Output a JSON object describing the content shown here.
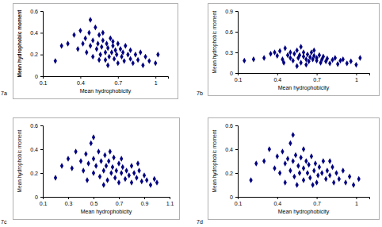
{
  "chart_data": [
    {
      "type": "scatter",
      "title": "7a",
      "x_label": "Mean hydrophobicity",
      "y_label": "Mean hydrophobic moment",
      "color": "#000080",
      "marker": "diamond",
      "grid": false,
      "xlim": [
        0.1,
        1.1
      ],
      "xticks": [
        0.1,
        0.4,
        0.7,
        1
      ],
      "ylim": [
        0,
        0.6
      ],
      "yticks": [
        0,
        0.2,
        0.4,
        0.6
      ],
      "x": [
        0.2,
        0.25,
        0.3,
        0.35,
        0.38,
        0.4,
        0.42,
        0.44,
        0.45,
        0.47,
        0.48,
        0.5,
        0.5,
        0.52,
        0.53,
        0.54,
        0.55,
        0.56,
        0.57,
        0.58,
        0.6,
        0.6,
        0.61,
        0.62,
        0.63,
        0.64,
        0.65,
        0.66,
        0.67,
        0.68,
        0.69,
        0.7,
        0.7,
        0.72,
        0.73,
        0.74,
        0.75,
        0.76,
        0.78,
        0.8,
        0.8,
        0.82,
        0.84,
        0.86,
        0.88,
        0.9,
        0.92,
        0.95,
        1.0,
        1.02,
        0.48,
        0.62,
        0.55,
        0.66,
        0.58
      ],
      "values": [
        0.14,
        0.28,
        0.3,
        0.38,
        0.25,
        0.42,
        0.3,
        0.35,
        0.22,
        0.4,
        0.28,
        0.33,
        0.18,
        0.45,
        0.25,
        0.3,
        0.38,
        0.2,
        0.27,
        0.33,
        0.22,
        0.15,
        0.3,
        0.26,
        0.18,
        0.35,
        0.22,
        0.28,
        0.16,
        0.24,
        0.2,
        0.3,
        0.12,
        0.25,
        0.18,
        0.22,
        0.14,
        0.28,
        0.2,
        0.16,
        0.24,
        0.12,
        0.2,
        0.15,
        0.22,
        0.1,
        0.18,
        0.14,
        0.12,
        0.2,
        0.52,
        0.1,
        0.15,
        0.32,
        0.4
      ]
    },
    {
      "type": "scatter",
      "title": "7b",
      "x_label": "Mean hydrophobicity",
      "y_label": "Mean hydrophobic moment",
      "color": "#000080",
      "marker": "diamond",
      "grid": false,
      "xlim": [
        0.1,
        1.1
      ],
      "xticks": [
        0.1,
        0.4,
        0.7,
        1
      ],
      "ylim": [
        0,
        0.9
      ],
      "yticks": [
        0,
        0.3,
        0.6,
        0.9
      ],
      "x": [
        0.15,
        0.22,
        0.3,
        0.35,
        0.38,
        0.4,
        0.42,
        0.44,
        0.46,
        0.48,
        0.5,
        0.5,
        0.52,
        0.53,
        0.55,
        0.56,
        0.57,
        0.58,
        0.6,
        0.6,
        0.62,
        0.63,
        0.64,
        0.65,
        0.66,
        0.67,
        0.68,
        0.7,
        0.7,
        0.72,
        0.73,
        0.74,
        0.75,
        0.77,
        0.78,
        0.8,
        0.82,
        0.84,
        0.86,
        0.88,
        0.9,
        0.93,
        0.96,
        1.0,
        1.03,
        0.58,
        0.62,
        0.45,
        0.68,
        0.55
      ],
      "values": [
        0.18,
        0.2,
        0.22,
        0.28,
        0.3,
        0.25,
        0.32,
        0.2,
        0.36,
        0.26,
        0.22,
        0.3,
        0.18,
        0.28,
        0.33,
        0.22,
        0.26,
        0.15,
        0.24,
        0.3,
        0.2,
        0.27,
        0.17,
        0.23,
        0.3,
        0.2,
        0.25,
        0.18,
        0.22,
        0.26,
        0.15,
        0.2,
        0.24,
        0.17,
        0.21,
        0.14,
        0.19,
        0.22,
        0.13,
        0.18,
        0.2,
        0.14,
        0.17,
        0.12,
        0.22,
        0.38,
        0.12,
        0.15,
        0.33,
        0.1
      ]
    },
    {
      "type": "scatter",
      "title": "7c",
      "x_label": "Mean hydrophobicity",
      "y_label": "Mean hydrophobic moment",
      "color": "#000080",
      "marker": "diamond",
      "grid": false,
      "xlim": [
        0.1,
        1.1
      ],
      "xticks": [
        0.1,
        0.3,
        0.5,
        0.7,
        0.9,
        1.1
      ],
      "ylim": [
        0,
        0.6
      ],
      "yticks": [
        0,
        0.2,
        0.4,
        0.6
      ],
      "x": [
        0.2,
        0.25,
        0.3,
        0.33,
        0.36,
        0.4,
        0.42,
        0.44,
        0.46,
        0.48,
        0.5,
        0.5,
        0.52,
        0.54,
        0.55,
        0.56,
        0.58,
        0.59,
        0.6,
        0.61,
        0.62,
        0.64,
        0.65,
        0.66,
        0.67,
        0.68,
        0.7,
        0.7,
        0.72,
        0.73,
        0.75,
        0.76,
        0.78,
        0.8,
        0.8,
        0.82,
        0.84,
        0.86,
        0.88,
        0.9,
        0.92,
        0.95,
        0.98,
        1.0,
        0.5,
        0.45,
        0.63,
        0.58,
        0.72,
        0.85
      ],
      "values": [
        0.16,
        0.26,
        0.32,
        0.24,
        0.38,
        0.3,
        0.22,
        0.36,
        0.28,
        0.45,
        0.32,
        0.2,
        0.26,
        0.38,
        0.17,
        0.3,
        0.22,
        0.35,
        0.26,
        0.14,
        0.3,
        0.2,
        0.25,
        0.33,
        0.16,
        0.22,
        0.28,
        0.12,
        0.2,
        0.25,
        0.15,
        0.22,
        0.18,
        0.26,
        0.12,
        0.2,
        0.16,
        0.22,
        0.13,
        0.18,
        0.14,
        0.1,
        0.15,
        0.12,
        0.5,
        0.14,
        0.38,
        0.1,
        0.32,
        0.28
      ]
    },
    {
      "type": "scatter",
      "title": "7d",
      "x_label": "Mean hydrophobicity",
      "y_label": "Mean hydrophobic moment",
      "color": "#000080",
      "marker": "diamond",
      "grid": false,
      "xlim": [
        0.1,
        1.1
      ],
      "xticks": [
        0.1,
        0.4,
        0.7,
        1
      ],
      "ylim": [
        0,
        0.6
      ],
      "yticks": [
        0,
        0.2,
        0.4,
        0.6
      ],
      "x": [
        0.2,
        0.24,
        0.3,
        0.34,
        0.38,
        0.4,
        0.42,
        0.44,
        0.46,
        0.48,
        0.5,
        0.5,
        0.52,
        0.53,
        0.54,
        0.56,
        0.57,
        0.58,
        0.6,
        0.6,
        0.62,
        0.63,
        0.64,
        0.65,
        0.66,
        0.68,
        0.69,
        0.7,
        0.71,
        0.72,
        0.74,
        0.75,
        0.77,
        0.78,
        0.8,
        0.82,
        0.83,
        0.85,
        0.87,
        0.9,
        0.92,
        0.95,
        0.98,
        1.02,
        0.52,
        0.46,
        0.6,
        0.67,
        0.8,
        0.55
      ],
      "values": [
        0.14,
        0.28,
        0.3,
        0.4,
        0.24,
        0.34,
        0.2,
        0.38,
        0.28,
        0.32,
        0.45,
        0.22,
        0.3,
        0.17,
        0.35,
        0.26,
        0.2,
        0.33,
        0.24,
        0.14,
        0.3,
        0.2,
        0.27,
        0.16,
        0.34,
        0.22,
        0.28,
        0.12,
        0.18,
        0.25,
        0.2,
        0.3,
        0.15,
        0.22,
        0.18,
        0.25,
        0.12,
        0.2,
        0.15,
        0.22,
        0.12,
        0.17,
        0.1,
        0.15,
        0.52,
        0.12,
        0.4,
        0.1,
        0.3,
        0.1
      ]
    }
  ]
}
